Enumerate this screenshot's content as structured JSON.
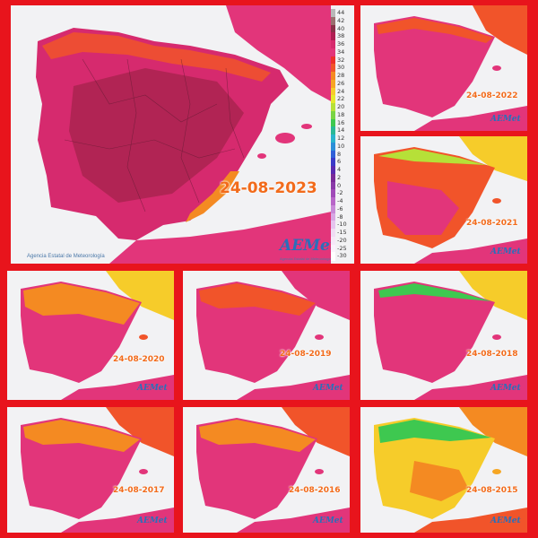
{
  "panels": [
    {
      "id": "p2023",
      "date": "24-08-2023",
      "credit": "Agencia Estatal de Meteorología",
      "logo": "AEMet",
      "logo_sub": "Agencia Estatal de Meteorología",
      "dominant_color": "#d62a6e"
    },
    {
      "id": "p2022",
      "date": "24-08-2022",
      "logo": "AEMet",
      "dominant_color": "#e2357a"
    },
    {
      "id": "p2021",
      "date": "24-08-2021",
      "logo": "AEMet",
      "dominant_color": "#f1542a"
    },
    {
      "id": "p2020",
      "date": "24-08-2020",
      "logo": "AEMet",
      "dominant_color": "#e2357a"
    },
    {
      "id": "p2019",
      "date": "24-08-2019",
      "logo": "AEMet",
      "dominant_color": "#e2357a"
    },
    {
      "id": "p2018",
      "date": "24-08-2018",
      "logo": "AEMet",
      "dominant_color": "#e2357a"
    },
    {
      "id": "p2017",
      "date": "24-08-2017",
      "logo": "AEMet",
      "dominant_color": "#e2357a"
    },
    {
      "id": "p2016",
      "date": "24-08-2016",
      "logo": "AEMet",
      "dominant_color": "#e2357a"
    },
    {
      "id": "p2015",
      "date": "24-08-2015",
      "logo": "AEMet",
      "dominant_color": "#f6a623"
    }
  ],
  "legend": {
    "values": [
      44,
      42,
      40,
      38,
      36,
      34,
      32,
      30,
      28,
      26,
      24,
      22,
      20,
      18,
      16,
      14,
      12,
      10,
      8,
      6,
      4,
      2,
      0,
      -2,
      -4,
      -6,
      -8,
      -10,
      -15,
      -20,
      -25,
      -30
    ],
    "colors": [
      "#b8b8b8",
      "#9a6f6f",
      "#8a3048",
      "#b01e52",
      "#d62a6e",
      "#e2357a",
      "#ee2f2a",
      "#f1542a",
      "#f48a22",
      "#f6a623",
      "#f6cc2a",
      "#e6e82c",
      "#b6e038",
      "#7ad444",
      "#3ec850",
      "#2ab896",
      "#2ab4cc",
      "#2c8fd8",
      "#3060d8",
      "#3a3ac8",
      "#5a2ab0",
      "#7a2a98",
      "#8a3aa8",
      "#a04ab8",
      "#b866c8",
      "#c88ad8",
      "#d8a8e4",
      "#e6c4ee",
      "#f0dcf4",
      "#f6e8f8",
      "#faf2fc",
      "#ffffff"
    ]
  }
}
